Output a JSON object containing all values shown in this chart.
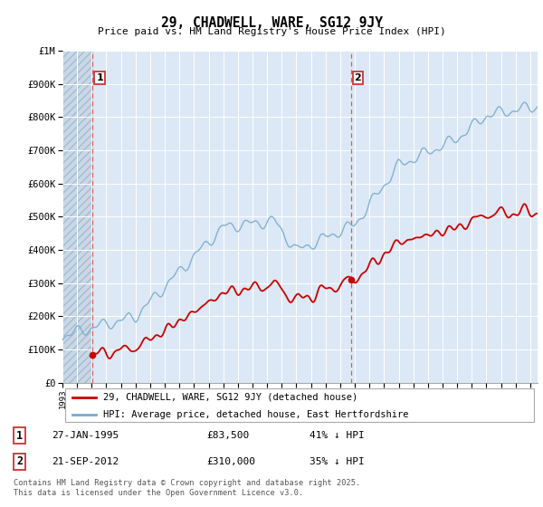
{
  "title": "29, CHADWELL, WARE, SG12 9JY",
  "subtitle": "Price paid vs. HM Land Registry's House Price Index (HPI)",
  "ylabel_ticks": [
    "£0",
    "£100K",
    "£200K",
    "£300K",
    "£400K",
    "£500K",
    "£600K",
    "£700K",
    "£800K",
    "£900K",
    "£1M"
  ],
  "ytick_values": [
    0,
    100000,
    200000,
    300000,
    400000,
    500000,
    600000,
    700000,
    800000,
    900000,
    1000000
  ],
  "ylim": [
    0,
    1000000
  ],
  "xlim_start": 1993.0,
  "xlim_end": 2025.5,
  "sale1_date": 1995.07,
  "sale1_price": 83500,
  "sale1_label": "1",
  "sale2_date": 2012.72,
  "sale2_price": 310000,
  "sale2_label": "2",
  "legend_line1": "29, CHADWELL, WARE, SG12 9JY (detached house)",
  "legend_line2": "HPI: Average price, detached house, East Hertfordshire",
  "footer": "Contains HM Land Registry data © Crown copyright and database right 2025.\nThis data is licensed under the Open Government Licence v3.0.",
  "plot_bg_color": "#dce8f5",
  "grid_color": "#ffffff",
  "red_line_color": "#cc0000",
  "blue_line_color": "#7aabcf",
  "sale_dot_color": "#cc0000",
  "vline_color": "#dd4444",
  "box_edge_color": "#cc3333",
  "hatch_bg": "#c5d8ea"
}
